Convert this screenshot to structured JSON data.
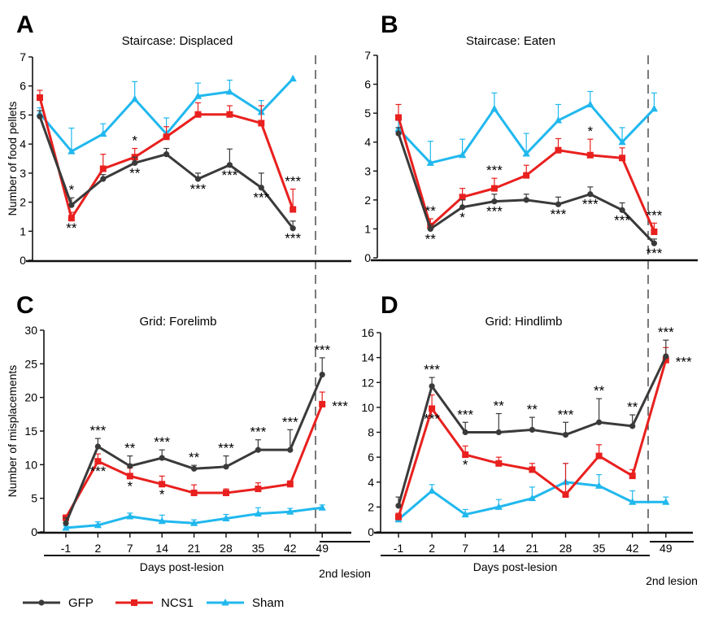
{
  "figure": {
    "xlabel": "Days post-lesion",
    "second_lesion_label": "2nd lesion",
    "colors": {
      "GFP": "#3a3a3a",
      "NCS1": "#e8201e",
      "Sham": "#20b8ee"
    }
  },
  "legend": [
    {
      "name": "GFP",
      "color": "#3a3a3a",
      "marker": "circle"
    },
    {
      "name": "NCS1",
      "color": "#e8201e",
      "marker": "square"
    },
    {
      "name": "Sham",
      "color": "#20b8ee",
      "marker": "triangle"
    }
  ],
  "chart_data": [
    {
      "panel": "A",
      "type": "line",
      "title": "Staircase: Displaced",
      "ylabel": "Number of food pellets",
      "xlabel": "Days post-lesion",
      "categories": [
        "-1",
        "2",
        "7",
        "14",
        "21",
        "28",
        "35",
        "42",
        "49"
      ],
      "ylim": [
        0,
        7
      ],
      "yticks": [
        0,
        1,
        2,
        3,
        4,
        5,
        6,
        7
      ],
      "series": [
        {
          "name": "GFP",
          "values": [
            4.95,
            1.9,
            2.8,
            3.35,
            3.65,
            2.8,
            3.28,
            2.5,
            1.1
          ],
          "errors": [
            0.2,
            0.25,
            0.15,
            0.2,
            0.2,
            0.2,
            0.55,
            0.5,
            0.25
          ]
        },
        {
          "name": "NCS1",
          "values": [
            5.6,
            1.45,
            3.15,
            3.55,
            4.25,
            5.02,
            5.02,
            4.72,
            1.75
          ],
          "errors": [
            0.25,
            0.2,
            0.5,
            0.3,
            0.35,
            0.4,
            0.3,
            0.6,
            0.7
          ]
        },
        {
          "name": "Sham",
          "values": [
            5.05,
            3.75,
            4.35,
            5.55,
            4.35,
            5.65,
            5.8,
            5.1,
            6.25
          ],
          "errors": [
            0.2,
            0.8,
            0.35,
            0.6,
            0.55,
            0.45,
            0.4,
            0.4,
            0
          ]
        }
      ],
      "annotations": [
        {
          "x": "2",
          "text": "*",
          "near": "GFP",
          "place": "above"
        },
        {
          "x": "2",
          "text": "**",
          "near": "NCS1",
          "place": "below"
        },
        {
          "x": "14",
          "text": "*",
          "near": "NCS1",
          "place": "above"
        },
        {
          "x": "14",
          "text": "**",
          "near": "GFP",
          "place": "below"
        },
        {
          "x": "28",
          "text": "***",
          "near": "GFP",
          "place": "below"
        },
        {
          "x": "35",
          "text": "***",
          "near": "GFP",
          "place": "below"
        },
        {
          "x": "42",
          "text": "***",
          "near": "GFP",
          "place": "below"
        },
        {
          "x": "49",
          "text": "***",
          "near": "NCS1",
          "place": "above"
        },
        {
          "x": "49",
          "text": "***",
          "near": "GFP",
          "place": "below"
        }
      ]
    },
    {
      "panel": "B",
      "type": "line",
      "title": "Staircase: Eaten",
      "ylabel": "",
      "xlabel": "Days post-lesion",
      "categories": [
        "-1",
        "2",
        "7",
        "14",
        "21",
        "28",
        "35",
        "42",
        "49"
      ],
      "ylim": [
        0,
        7
      ],
      "yticks": [
        0,
        1,
        2,
        3,
        4,
        5,
        6,
        7
      ],
      "series": [
        {
          "name": "GFP",
          "values": [
            4.3,
            1.0,
            1.75,
            1.95,
            2.0,
            1.85,
            2.2,
            1.65,
            0.5
          ],
          "errors": [
            0.2,
            0.15,
            0.25,
            0.25,
            0.2,
            0.25,
            0.25,
            0.25,
            0.15
          ]
        },
        {
          "name": "NCS1",
          "values": [
            4.85,
            1.1,
            2.1,
            2.4,
            2.85,
            3.72,
            3.55,
            3.45,
            0.9
          ],
          "errors": [
            0.45,
            0.25,
            0.3,
            0.35,
            0.35,
            0.4,
            0.55,
            0.35,
            0.3
          ]
        },
        {
          "name": "Sham",
          "values": [
            4.45,
            3.28,
            3.55,
            5.15,
            3.6,
            4.75,
            5.3,
            4.0,
            5.15
          ],
          "errors": [
            0.3,
            0.75,
            0.55,
            0.55,
            0.7,
            0.55,
            0.45,
            0.5,
            0.55
          ]
        }
      ],
      "annotations": [
        {
          "x": "2",
          "text": "**",
          "near": "NCS1",
          "place": "above"
        },
        {
          "x": "2",
          "text": "**",
          "near": "GFP",
          "place": "below"
        },
        {
          "x": "7",
          "text": "*",
          "near": "GFP",
          "place": "below"
        },
        {
          "x": "14",
          "text": "***",
          "near": "NCS1",
          "place": "above"
        },
        {
          "x": "14",
          "text": "***",
          "near": "GFP",
          "place": "below"
        },
        {
          "x": "28",
          "text": "***",
          "near": "GFP",
          "place": "below"
        },
        {
          "x": "35",
          "text": "*",
          "near": "NCS1",
          "place": "above"
        },
        {
          "x": "35",
          "text": "***",
          "near": "GFP",
          "place": "below"
        },
        {
          "x": "42",
          "text": "***",
          "near": "GFP",
          "place": "below"
        },
        {
          "x": "49",
          "text": "***",
          "near": "NCS1",
          "place": "above"
        },
        {
          "x": "49",
          "text": "***",
          "near": "GFP",
          "place": "below"
        }
      ]
    },
    {
      "panel": "C",
      "type": "line",
      "title": "Grid: Forelimb",
      "ylabel": "Number of misplacements",
      "xlabel": "Days post-lesion",
      "categories": [
        "-1",
        "2",
        "7",
        "14",
        "21",
        "28",
        "35",
        "42",
        "49"
      ],
      "ylim": [
        0,
        30
      ],
      "yticks": [
        0,
        5,
        10,
        15,
        20,
        25,
        30
      ],
      "series": [
        {
          "name": "GFP",
          "values": [
            1.3,
            12.7,
            9.8,
            11.0,
            9.4,
            9.7,
            12.2,
            12.2,
            23.4
          ],
          "errors": [
            0.8,
            1.2,
            1.5,
            1.2,
            0.5,
            1.6,
            1.5,
            3.0,
            2.5
          ]
        },
        {
          "name": "NCS1",
          "values": [
            2.1,
            10.5,
            8.3,
            7.1,
            5.8,
            5.8,
            6.4,
            7.1,
            19.0
          ],
          "errors": [
            0.4,
            1.1,
            1.2,
            1.2,
            1.2,
            0.6,
            0.9,
            0.5,
            1.8
          ]
        },
        {
          "name": "Sham",
          "values": [
            0.6,
            1.0,
            2.3,
            1.6,
            1.3,
            2.0,
            2.7,
            3.0,
            3.6
          ],
          "errors": [
            0.3,
            0.5,
            0.5,
            0.9,
            0.5,
            0.6,
            0.9,
            0.5,
            0.4
          ]
        }
      ],
      "annotations": [
        {
          "x": "2",
          "text": "***",
          "near": "GFP",
          "place": "above"
        },
        {
          "x": "2",
          "text": "***",
          "near": "NCS1",
          "place": "below"
        },
        {
          "x": "7",
          "text": "**",
          "near": "GFP",
          "place": "above"
        },
        {
          "x": "7",
          "text": "*",
          "near": "NCS1",
          "place": "below"
        },
        {
          "x": "14",
          "text": "***",
          "near": "GFP",
          "place": "above"
        },
        {
          "x": "14",
          "text": "*",
          "near": "NCS1",
          "place": "below"
        },
        {
          "x": "21",
          "text": "**",
          "near": "GFP",
          "place": "above"
        },
        {
          "x": "28",
          "text": "***",
          "near": "GFP",
          "place": "above"
        },
        {
          "x": "35",
          "text": "***",
          "near": "GFP",
          "place": "above"
        },
        {
          "x": "42",
          "text": "***",
          "near": "GFP",
          "place": "above"
        },
        {
          "x": "49",
          "text": "***",
          "near": "GFP",
          "place": "above"
        },
        {
          "x": "49",
          "text": "***",
          "near": "NCS1",
          "place": "right"
        }
      ]
    },
    {
      "panel": "D",
      "type": "line",
      "title": "Grid: Hindlimb",
      "ylabel": "",
      "xlabel": "Days post-lesion",
      "categories": [
        "-1",
        "2",
        "7",
        "14",
        "21",
        "28",
        "35",
        "42",
        "49"
      ],
      "ylim": [
        0,
        16
      ],
      "yticks": [
        0,
        2,
        4,
        6,
        8,
        10,
        12,
        14,
        16
      ],
      "series": [
        {
          "name": "GFP",
          "values": [
            2.1,
            11.7,
            8.0,
            8.0,
            8.2,
            7.8,
            8.8,
            8.5,
            14.1
          ],
          "errors": [
            0.7,
            0.7,
            0.8,
            1.5,
            1.0,
            1.0,
            1.9,
            0.9,
            1.3
          ]
        },
        {
          "name": "NCS1",
          "values": [
            1.2,
            9.9,
            6.2,
            5.5,
            5.0,
            3.0,
            6.1,
            4.5,
            13.8
          ],
          "errors": [
            0.3,
            1.1,
            0.7,
            0.5,
            0.5,
            2.5,
            0.9,
            0.5,
            1.0
          ]
        },
        {
          "name": "Sham",
          "values": [
            1.0,
            3.3,
            1.4,
            2.0,
            2.7,
            4.0,
            3.7,
            2.4,
            2.4
          ],
          "errors": [
            0.3,
            0.5,
            0.4,
            0.6,
            0.9,
            1.5,
            0.9,
            0.9,
            0.4
          ]
        }
      ],
      "annotations": [
        {
          "x": "2",
          "text": "***",
          "near": "GFP",
          "place": "above"
        },
        {
          "x": "2",
          "text": "***",
          "near": "NCS1",
          "place": "below"
        },
        {
          "x": "7",
          "text": "***",
          "near": "GFP",
          "place": "above"
        },
        {
          "x": "7",
          "text": "*",
          "near": "NCS1",
          "place": "below"
        },
        {
          "x": "14",
          "text": "**",
          "near": "GFP",
          "place": "above"
        },
        {
          "x": "21",
          "text": "**",
          "near": "GFP",
          "place": "above"
        },
        {
          "x": "28",
          "text": "***",
          "near": "GFP",
          "place": "above"
        },
        {
          "x": "35",
          "text": "**",
          "near": "GFP",
          "place": "above"
        },
        {
          "x": "42",
          "text": "**",
          "near": "GFP",
          "place": "above"
        },
        {
          "x": "49",
          "text": "***",
          "near": "GFP",
          "place": "above"
        },
        {
          "x": "49",
          "text": "***",
          "near": "NCS1",
          "place": "right"
        }
      ]
    }
  ]
}
